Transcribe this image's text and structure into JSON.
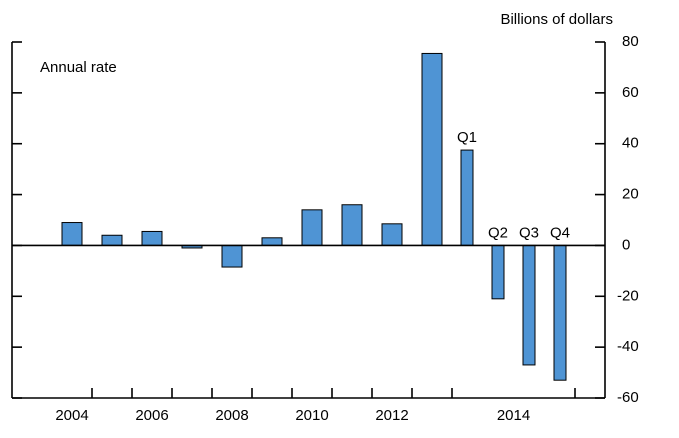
{
  "chart_data": {
    "type": "bar",
    "y_axis_label": "Billions of dollars",
    "annotation": "Annual rate",
    "categories": [
      "2004",
      null,
      "2006",
      null,
      "2008",
      null,
      "2010",
      null,
      "2012",
      null,
      "Q1",
      "Q2",
      "Q3",
      "Q4"
    ],
    "x_group_label": "2014",
    "values": [
      9,
      4,
      5.5,
      -1,
      -8.5,
      3,
      14,
      16,
      8.5,
      75.5,
      37.5,
      -21,
      -47,
      -53
    ],
    "color": "#4f94d4",
    "ylim": [
      -60,
      80
    ],
    "yticks": [
      -60,
      -40,
      -20,
      0,
      20,
      40,
      60,
      80
    ]
  }
}
